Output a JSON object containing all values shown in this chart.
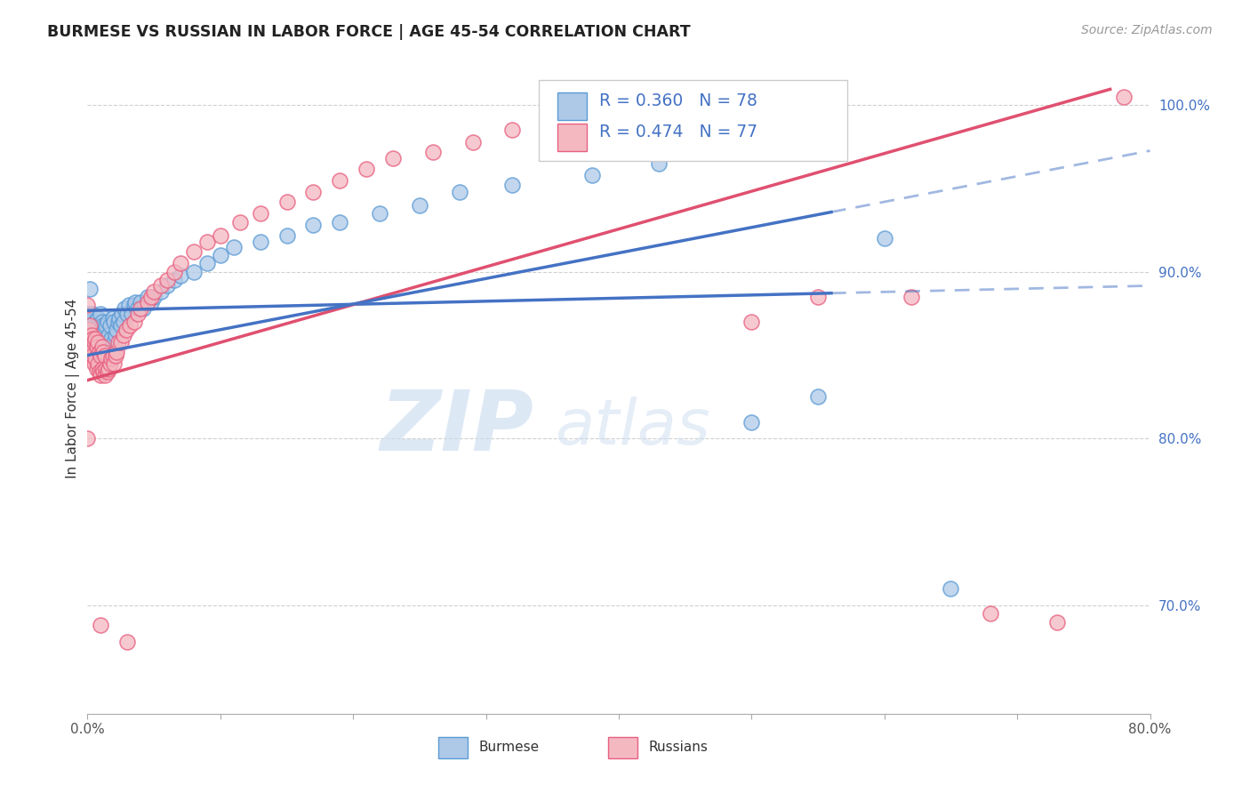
{
  "title": "BURMESE VS RUSSIAN IN LABOR FORCE | AGE 45-54 CORRELATION CHART",
  "source": "Source: ZipAtlas.com",
  "ylabel": "In Labor Force | Age 45-54",
  "xlim": [
    0.0,
    0.8
  ],
  "ylim": [
    0.635,
    1.025
  ],
  "xticks": [
    0.0,
    0.1,
    0.2,
    0.3,
    0.4,
    0.5,
    0.6,
    0.7,
    0.8
  ],
  "xticklabels": [
    "0.0%",
    "",
    "",
    "",
    "",
    "",
    "",
    "",
    "80.0%"
  ],
  "yticks": [
    0.7,
    0.8,
    0.9,
    1.0
  ],
  "yticklabels": [
    "70.0%",
    "80.0%",
    "90.0%",
    "100.0%"
  ],
  "burmese_R": 0.36,
  "burmese_N": 78,
  "russian_R": 0.474,
  "russian_N": 77,
  "burmese_color": "#aec9e8",
  "burmese_edge_color": "#5b9bd5",
  "russian_color": "#f4b8c1",
  "russian_edge_color": "#e86080",
  "burmese_line_color": "#4472c4",
  "russian_line_color": "#e05070",
  "legend_label_burmese": "Burmese",
  "legend_label_russian": "Russians",
  "watermark_zip": "ZIP",
  "watermark_atlas": "atlas",
  "grid_color": "#d0d0d0",
  "burmese_x": [
    0.001,
    0.001,
    0.002,
    0.002,
    0.003,
    0.003,
    0.004,
    0.004,
    0.005,
    0.005,
    0.006,
    0.006,
    0.007,
    0.007,
    0.008,
    0.008,
    0.009,
    0.009,
    0.01,
    0.01,
    0.01,
    0.011,
    0.011,
    0.012,
    0.012,
    0.013,
    0.013,
    0.014,
    0.014,
    0.015,
    0.015,
    0.016,
    0.017,
    0.018,
    0.019,
    0.02,
    0.02,
    0.021,
    0.022,
    0.023,
    0.024,
    0.025,
    0.026,
    0.027,
    0.028,
    0.03,
    0.031,
    0.033,
    0.035,
    0.036,
    0.038,
    0.04,
    0.042,
    0.045,
    0.048,
    0.05,
    0.055,
    0.06,
    0.065,
    0.07,
    0.08,
    0.09,
    0.1,
    0.11,
    0.13,
    0.15,
    0.17,
    0.19,
    0.22,
    0.25,
    0.28,
    0.32,
    0.38,
    0.43,
    0.5,
    0.55,
    0.6,
    0.65
  ],
  "burmese_y": [
    0.86,
    0.875,
    0.87,
    0.89,
    0.855,
    0.87,
    0.865,
    0.875,
    0.855,
    0.865,
    0.86,
    0.87,
    0.855,
    0.868,
    0.862,
    0.872,
    0.858,
    0.868,
    0.855,
    0.865,
    0.875,
    0.86,
    0.87,
    0.858,
    0.868,
    0.855,
    0.865,
    0.858,
    0.868,
    0.855,
    0.87,
    0.862,
    0.868,
    0.86,
    0.872,
    0.858,
    0.87,
    0.862,
    0.865,
    0.87,
    0.872,
    0.868,
    0.875,
    0.87,
    0.878,
    0.875,
    0.88,
    0.875,
    0.88,
    0.882,
    0.878,
    0.882,
    0.878,
    0.885,
    0.882,
    0.885,
    0.888,
    0.892,
    0.895,
    0.898,
    0.9,
    0.905,
    0.91,
    0.915,
    0.918,
    0.922,
    0.928,
    0.93,
    0.935,
    0.94,
    0.948,
    0.952,
    0.958,
    0.965,
    0.81,
    0.825,
    0.92,
    0.71
  ],
  "russian_x": [
    0.001,
    0.001,
    0.002,
    0.002,
    0.003,
    0.003,
    0.004,
    0.004,
    0.005,
    0.005,
    0.006,
    0.006,
    0.007,
    0.007,
    0.008,
    0.008,
    0.009,
    0.009,
    0.01,
    0.01,
    0.011,
    0.011,
    0.012,
    0.012,
    0.013,
    0.013,
    0.014,
    0.015,
    0.016,
    0.017,
    0.018,
    0.019,
    0.02,
    0.021,
    0.022,
    0.023,
    0.025,
    0.027,
    0.029,
    0.032,
    0.035,
    0.038,
    0.04,
    0.045,
    0.048,
    0.05,
    0.055,
    0.06,
    0.065,
    0.07,
    0.08,
    0.09,
    0.1,
    0.115,
    0.13,
    0.15,
    0.17,
    0.19,
    0.21,
    0.23,
    0.26,
    0.29,
    0.32,
    0.36,
    0.4,
    0.43,
    0.46,
    0.5,
    0.55,
    0.62,
    0.68,
    0.73,
    0.78,
    0.0,
    0.0,
    0.01,
    0.03
  ],
  "russian_y": [
    0.85,
    0.865,
    0.852,
    0.868,
    0.848,
    0.862,
    0.85,
    0.86,
    0.845,
    0.858,
    0.848,
    0.86,
    0.842,
    0.855,
    0.845,
    0.858,
    0.84,
    0.852,
    0.838,
    0.85,
    0.842,
    0.855,
    0.84,
    0.852,
    0.838,
    0.85,
    0.842,
    0.84,
    0.842,
    0.845,
    0.848,
    0.85,
    0.845,
    0.85,
    0.852,
    0.858,
    0.858,
    0.862,
    0.865,
    0.868,
    0.87,
    0.875,
    0.878,
    0.882,
    0.885,
    0.888,
    0.892,
    0.895,
    0.9,
    0.905,
    0.912,
    0.918,
    0.922,
    0.93,
    0.935,
    0.942,
    0.948,
    0.955,
    0.962,
    0.968,
    0.972,
    0.978,
    0.985,
    0.992,
    0.998,
    1.002,
    1.005,
    0.87,
    0.885,
    0.885,
    0.695,
    0.69,
    1.005,
    0.8,
    0.88,
    0.688,
    0.678
  ]
}
